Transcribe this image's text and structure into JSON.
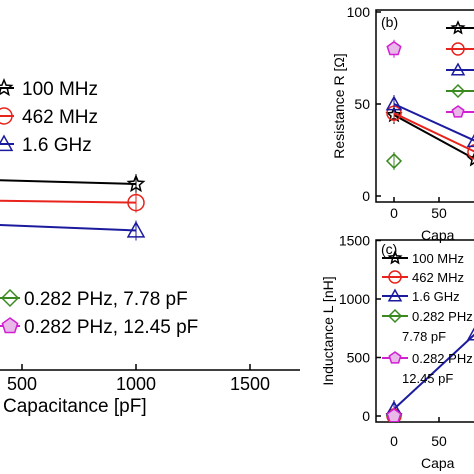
{
  "chart_data": [
    {
      "panel": "a",
      "type": "line",
      "xlabel": "Capacitance [pF]",
      "ylabel": "",
      "x_ticks": [
        "500",
        "1000",
        "1500"
      ],
      "xlim": [
        0,
        1500
      ],
      "ylim": [
        0,
        100
      ],
      "series": [
        {
          "name": "100 MHz",
          "color": "#000000",
          "marker": "star",
          "x": [
            0,
            1000
          ],
          "y": [
            62,
            60
          ]
        },
        {
          "name": "462 MHz",
          "color": "#e8231c",
          "marker": "circle",
          "x": [
            0,
            1000
          ],
          "y": [
            55,
            54
          ]
        },
        {
          "name": "1.6 GHz",
          "color": "#1b1b9e",
          "marker": "triangle",
          "x": [
            0,
            1000
          ],
          "y": [
            48,
            45
          ]
        },
        {
          "name": "0.282 PHz, 7.78 pF",
          "color": "#3a8a1f",
          "marker": "diamond",
          "x": [],
          "y": []
        },
        {
          "name": "0.282 PHz, 12.45 pF",
          "color": "#d21fd2",
          "marker": "pentagon",
          "x": [],
          "y": []
        }
      ]
    },
    {
      "panel": "b",
      "panel_label": "(b)",
      "type": "line",
      "ylabel": "Resistance R [Ω]",
      "xlabel": "Capa",
      "y_ticks": [
        "0",
        "50",
        "100"
      ],
      "x_ticks": [
        "0",
        "50"
      ],
      "ylim": [
        0,
        100
      ],
      "xlim": [
        -100,
        700
      ],
      "series": [
        {
          "name": "100 MHz",
          "color": "#000000",
          "marker": "star",
          "x": [
            0,
            900
          ],
          "y": [
            44,
            20
          ]
        },
        {
          "name": "462 MHz",
          "color": "#e8231c",
          "marker": "circle",
          "x": [
            0,
            900
          ],
          "y": [
            45,
            24
          ]
        },
        {
          "name": "1.6 GHz",
          "color": "#1b1b9e",
          "marker": "triangle",
          "x": [
            0,
            900
          ],
          "y": [
            50,
            30
          ]
        },
        {
          "name": "0.282 PHz, 7.78 pF",
          "color": "#3a8a1f",
          "marker": "diamond",
          "x": [
            0
          ],
          "y": [
            19
          ]
        },
        {
          "name": "0.282 PHz, 12.45 pF",
          "color": "#d21fd2",
          "marker": "pentagon",
          "x": [
            0
          ],
          "y": [
            80
          ]
        }
      ]
    },
    {
      "panel": "c",
      "panel_label": "(c)",
      "type": "line",
      "ylabel": "Inductance L [nH]",
      "xlabel": "Capa",
      "y_ticks": [
        "0",
        "500",
        "1000",
        "1500"
      ],
      "x_ticks": [
        "0",
        "50"
      ],
      "ylim": [
        0,
        1500
      ],
      "xlim": [
        -100,
        700
      ],
      "legend": [
        "100 MHz",
        "462 MHz",
        "1.6 GHz",
        "0.282 PHz, 7.78 pF",
        "0.282 PHz, 12.45 pF"
      ],
      "legend_lines": [
        "100 MHz",
        "462 MHz",
        "1.6 GHz",
        "0.282 PHz",
        "7.78 pF",
        "0.282 PHz",
        "12.45 pF"
      ],
      "series": [
        {
          "name": "100 MHz",
          "color": "#000000",
          "marker": "star",
          "x": [
            0
          ],
          "y": [
            0
          ]
        },
        {
          "name": "462 MHz",
          "color": "#e8231c",
          "marker": "circle",
          "x": [
            0
          ],
          "y": [
            0
          ]
        },
        {
          "name": "1.6 GHz",
          "color": "#1b1b9e",
          "marker": "triangle",
          "x": [
            0,
            900
          ],
          "y": [
            60,
            700
          ]
        },
        {
          "name": "0.282 PHz, 7.78 pF",
          "color": "#3a8a1f",
          "marker": "diamond",
          "x": [
            0
          ],
          "y": [
            0
          ]
        },
        {
          "name": "0.282 PHz, 12.45 pF",
          "color": "#d21fd2",
          "marker": "pentagon",
          "x": [
            0
          ],
          "y": [
            0
          ]
        }
      ]
    }
  ],
  "legend_a": {
    "top": [
      "100 MHz",
      "462 MHz",
      "1.6 GHz"
    ],
    "bottom": [
      "0.282 PHz, 7.78 pF",
      "0.282 PHz, 12.45 pF"
    ]
  }
}
